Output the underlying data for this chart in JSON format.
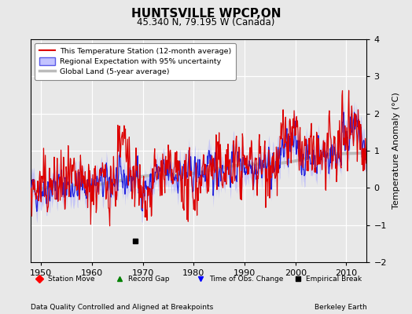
{
  "title": "HUNTSVILLE WPCP,ON",
  "subtitle": "45.340 N, 79.195 W (Canada)",
  "ylabel": "Temperature Anomaly (°C)",
  "xlabel_note": "Data Quality Controlled and Aligned at Breakpoints",
  "credit": "Berkeley Earth",
  "legend_station": "This Temperature Station (12-month average)",
  "legend_regional": "Regional Expectation with 95% uncertainty",
  "legend_global": "Global Land (5-year average)",
  "xlim": [
    1948,
    2014
  ],
  "ylim": [
    -2.0,
    4.0
  ],
  "yticks": [
    -2,
    -1,
    0,
    1,
    2,
    3,
    4
  ],
  "xticks": [
    1950,
    1960,
    1970,
    1980,
    1990,
    2000,
    2010
  ],
  "bg_color": "#e8e8e8",
  "plot_bg_color": "#e8e8e8",
  "grid_color": "#ffffff",
  "station_color": "#dd0000",
  "regional_color": "#2020dd",
  "regional_band_color": "#aaaaff",
  "global_color": "#bbbbbb",
  "empirical_break_x": 1968.5,
  "empirical_break_y": -1.42,
  "seed": 42
}
